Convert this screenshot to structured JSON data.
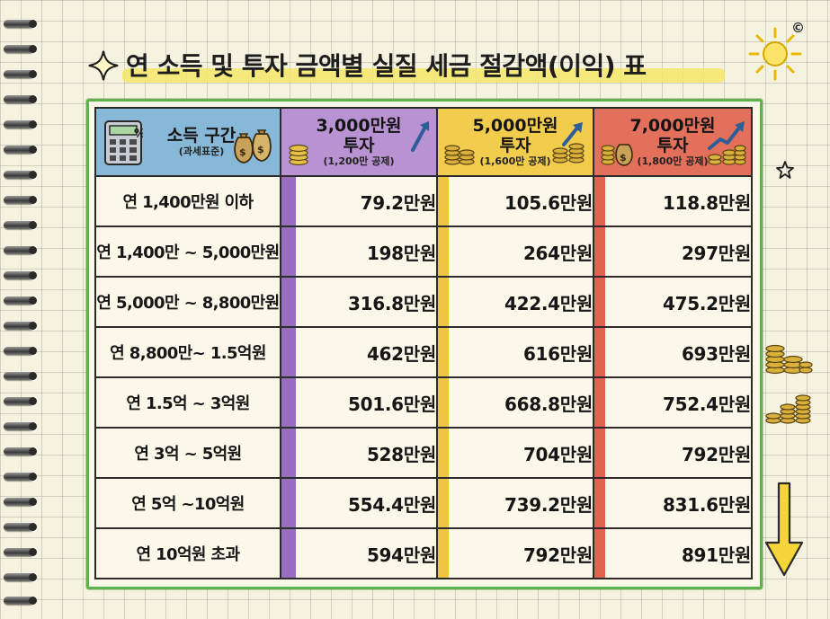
{
  "title": "연 소득 및 투자 금액별 실질 세금 절감액(이익) 표",
  "copyright": "©",
  "header": {
    "income": {
      "main": "소득 구간",
      "sub": "(과세표준)"
    },
    "columns": [
      {
        "main": "3,000만원",
        "main2": "투자",
        "sub": "(1,200만 공제)",
        "color": "#b892d2"
      },
      {
        "main": "5,000만원",
        "main2": "투자",
        "sub": "(1,600만 공제)",
        "color": "#f2cc4c"
      },
      {
        "main": "7,000만원",
        "main2": "투자",
        "sub": "(1,800만 공제)",
        "color": "#e2705a"
      }
    ]
  },
  "rows": [
    {
      "label": "연 1,400만원 이하",
      "values": [
        "79.2만원",
        "105.6만원",
        "118.8만원"
      ]
    },
    {
      "label": "연 1,400만 ~ 5,000만원",
      "values": [
        "198만원",
        "264만원",
        "297만원"
      ]
    },
    {
      "label": "연 5,000만 ~ 8,800만원",
      "values": [
        "316.8만원",
        "422.4만원",
        "475.2만원"
      ]
    },
    {
      "label": "연 8,800만~ 1.5억원",
      "values": [
        "462만원",
        "616만원",
        "693만원"
      ]
    },
    {
      "label": "연 1.5억 ~ 3억원",
      "values": [
        "501.6만원",
        "668.8만원",
        "752.4만원"
      ]
    },
    {
      "label": "연 3억 ~ 5억원",
      "values": [
        "528만원",
        "704만원",
        "792만원"
      ]
    },
    {
      "label": "연 5억 ~10억원",
      "values": [
        "554.4만원",
        "739.2만원",
        "831.6만원"
      ]
    },
    {
      "label": "연 10억원 초과",
      "values": [
        "594만원",
        "792만원",
        "891만원"
      ]
    }
  ],
  "icons": {
    "sparkle": "sparkle-icon",
    "sun": "sun-icon",
    "calculator": "calculator-icon",
    "money_bags": "money-bag-icon",
    "coins": "coin-stack-icon",
    "growth_arrow": "growth-arrow-icon",
    "star": "star-icon",
    "down_arrow": "down-arrow-icon"
  },
  "colors": {
    "title_highlight": "#f4e66a",
    "board_border": "#5db34a",
    "income_header": "#88b8d8",
    "col_3000": "#b892d2",
    "col_5000": "#f2cc4c",
    "col_7000": "#e2705a"
  }
}
